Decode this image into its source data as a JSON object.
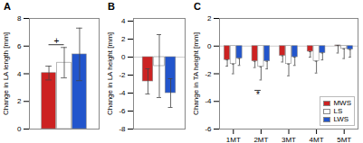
{
  "chart_data": [
    {
      "type": "bar",
      "title": "A",
      "ylabel": "Change in LA length [mm]",
      "categories": [
        null
      ],
      "series": [
        {
          "name": "MWS",
          "color": "#cc2222",
          "values": [
            4.05
          ],
          "errors": [
            0.5
          ]
        },
        {
          "name": "LS",
          "color": "#ffffff",
          "values": [
            4.8
          ],
          "errors": [
            1.1
          ]
        },
        {
          "name": "LWS",
          "color": "#2255cc",
          "values": [
            5.4
          ],
          "errors": [
            1.9
          ]
        }
      ],
      "ylim": [
        0,
        8
      ],
      "yticks": [
        0,
        2,
        4,
        6,
        8
      ],
      "annotations": [
        {
          "text": "+",
          "y": 6.1,
          "between": [
            "MWS",
            "LS"
          ]
        }
      ]
    },
    {
      "type": "bar",
      "title": "B",
      "ylabel": "Change in LA height [mm]",
      "categories": [
        null
      ],
      "series": [
        {
          "name": "MWS",
          "color": "#cc2222",
          "values": [
            -2.7
          ],
          "errors": [
            1.4
          ]
        },
        {
          "name": "LS",
          "color": "#ffffff",
          "values": [
            -1.0
          ],
          "errors": [
            3.5
          ]
        },
        {
          "name": "LWS",
          "color": "#2255cc",
          "values": [
            -4.0
          ],
          "errors": [
            1.6
          ]
        }
      ],
      "ylim": [
        -8,
        4.3
      ],
      "yticks": [
        -8,
        -6,
        -4,
        -2,
        0,
        2,
        4
      ]
    },
    {
      "type": "bar",
      "title": "C",
      "ylabel": "Change in TA height [mm]",
      "categories": [
        "1MT",
        "2MT",
        "3MT",
        "4MT",
        "5MT"
      ],
      "series": [
        {
          "name": "MWS",
          "color": "#cc2222",
          "values": [
            -1.0,
            -1.1,
            -0.7,
            -0.4,
            0.05
          ],
          "errors_minus": [
            0.45,
            0.45,
            0.45,
            0.4,
            0.55
          ]
        },
        {
          "name": "LS",
          "color": "#ffffff",
          "values": [
            -1.3,
            -1.5,
            -1.3,
            -1.1,
            -0.2
          ],
          "errors_minus": [
            0.7,
            0.95,
            0.85,
            0.85,
            0.7
          ]
        },
        {
          "name": "LWS",
          "color": "#2255cc",
          "values": [
            -0.9,
            -1.1,
            -0.8,
            -0.5,
            -0.25
          ],
          "errors_minus": [
            0.5,
            0.55,
            0.6,
            0.5,
            0.55
          ]
        }
      ],
      "ylim": [
        -6,
        2
      ],
      "yticks": [
        -6,
        -4,
        -2,
        0,
        2
      ],
      "legend": "lower right",
      "annotations": [
        {
          "text": "*",
          "y": -3.2,
          "category": "2MT",
          "between": [
            "MWS",
            "LS"
          ]
        }
      ]
    }
  ]
}
